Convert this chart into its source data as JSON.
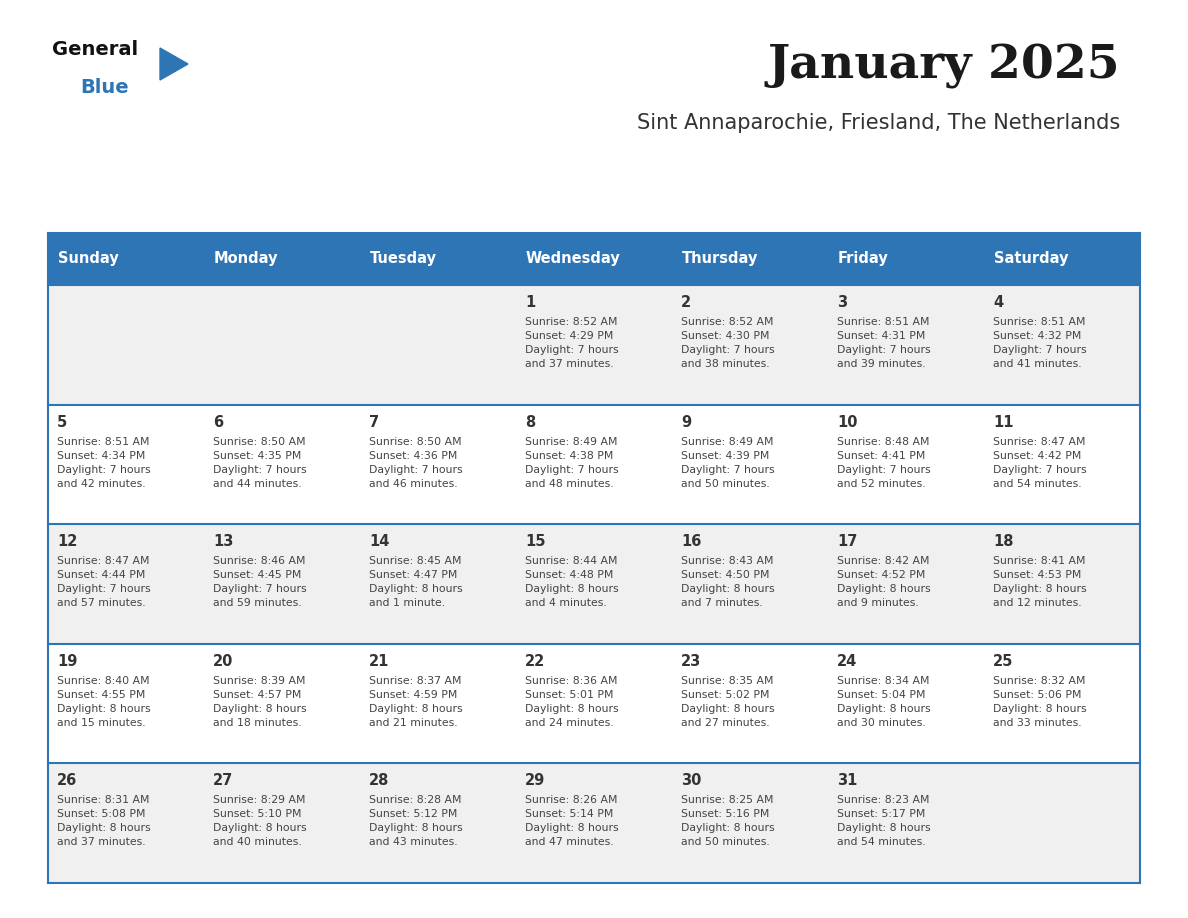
{
  "title": "January 2025",
  "subtitle": "Sint Annaparochie, Friesland, The Netherlands",
  "days_of_week": [
    "Sunday",
    "Monday",
    "Tuesday",
    "Wednesday",
    "Thursday",
    "Friday",
    "Saturday"
  ],
  "header_bg": "#2E75B6",
  "header_text_color": "#FFFFFF",
  "cell_bg_odd": "#F0F0F0",
  "cell_bg_even": "#FFFFFF",
  "separator_color": "#2E75B6",
  "day_number_color": "#333333",
  "cell_text_color": "#444444",
  "calendar_data": [
    [
      {
        "day": "",
        "info": ""
      },
      {
        "day": "",
        "info": ""
      },
      {
        "day": "",
        "info": ""
      },
      {
        "day": "1",
        "info": "Sunrise: 8:52 AM\nSunset: 4:29 PM\nDaylight: 7 hours\nand 37 minutes."
      },
      {
        "day": "2",
        "info": "Sunrise: 8:52 AM\nSunset: 4:30 PM\nDaylight: 7 hours\nand 38 minutes."
      },
      {
        "day": "3",
        "info": "Sunrise: 8:51 AM\nSunset: 4:31 PM\nDaylight: 7 hours\nand 39 minutes."
      },
      {
        "day": "4",
        "info": "Sunrise: 8:51 AM\nSunset: 4:32 PM\nDaylight: 7 hours\nand 41 minutes."
      }
    ],
    [
      {
        "day": "5",
        "info": "Sunrise: 8:51 AM\nSunset: 4:34 PM\nDaylight: 7 hours\nand 42 minutes."
      },
      {
        "day": "6",
        "info": "Sunrise: 8:50 AM\nSunset: 4:35 PM\nDaylight: 7 hours\nand 44 minutes."
      },
      {
        "day": "7",
        "info": "Sunrise: 8:50 AM\nSunset: 4:36 PM\nDaylight: 7 hours\nand 46 minutes."
      },
      {
        "day": "8",
        "info": "Sunrise: 8:49 AM\nSunset: 4:38 PM\nDaylight: 7 hours\nand 48 minutes."
      },
      {
        "day": "9",
        "info": "Sunrise: 8:49 AM\nSunset: 4:39 PM\nDaylight: 7 hours\nand 50 minutes."
      },
      {
        "day": "10",
        "info": "Sunrise: 8:48 AM\nSunset: 4:41 PM\nDaylight: 7 hours\nand 52 minutes."
      },
      {
        "day": "11",
        "info": "Sunrise: 8:47 AM\nSunset: 4:42 PM\nDaylight: 7 hours\nand 54 minutes."
      }
    ],
    [
      {
        "day": "12",
        "info": "Sunrise: 8:47 AM\nSunset: 4:44 PM\nDaylight: 7 hours\nand 57 minutes."
      },
      {
        "day": "13",
        "info": "Sunrise: 8:46 AM\nSunset: 4:45 PM\nDaylight: 7 hours\nand 59 minutes."
      },
      {
        "day": "14",
        "info": "Sunrise: 8:45 AM\nSunset: 4:47 PM\nDaylight: 8 hours\nand 1 minute."
      },
      {
        "day": "15",
        "info": "Sunrise: 8:44 AM\nSunset: 4:48 PM\nDaylight: 8 hours\nand 4 minutes."
      },
      {
        "day": "16",
        "info": "Sunrise: 8:43 AM\nSunset: 4:50 PM\nDaylight: 8 hours\nand 7 minutes."
      },
      {
        "day": "17",
        "info": "Sunrise: 8:42 AM\nSunset: 4:52 PM\nDaylight: 8 hours\nand 9 minutes."
      },
      {
        "day": "18",
        "info": "Sunrise: 8:41 AM\nSunset: 4:53 PM\nDaylight: 8 hours\nand 12 minutes."
      }
    ],
    [
      {
        "day": "19",
        "info": "Sunrise: 8:40 AM\nSunset: 4:55 PM\nDaylight: 8 hours\nand 15 minutes."
      },
      {
        "day": "20",
        "info": "Sunrise: 8:39 AM\nSunset: 4:57 PM\nDaylight: 8 hours\nand 18 minutes."
      },
      {
        "day": "21",
        "info": "Sunrise: 8:37 AM\nSunset: 4:59 PM\nDaylight: 8 hours\nand 21 minutes."
      },
      {
        "day": "22",
        "info": "Sunrise: 8:36 AM\nSunset: 5:01 PM\nDaylight: 8 hours\nand 24 minutes."
      },
      {
        "day": "23",
        "info": "Sunrise: 8:35 AM\nSunset: 5:02 PM\nDaylight: 8 hours\nand 27 minutes."
      },
      {
        "day": "24",
        "info": "Sunrise: 8:34 AM\nSunset: 5:04 PM\nDaylight: 8 hours\nand 30 minutes."
      },
      {
        "day": "25",
        "info": "Sunrise: 8:32 AM\nSunset: 5:06 PM\nDaylight: 8 hours\nand 33 minutes."
      }
    ],
    [
      {
        "day": "26",
        "info": "Sunrise: 8:31 AM\nSunset: 5:08 PM\nDaylight: 8 hours\nand 37 minutes."
      },
      {
        "day": "27",
        "info": "Sunrise: 8:29 AM\nSunset: 5:10 PM\nDaylight: 8 hours\nand 40 minutes."
      },
      {
        "day": "28",
        "info": "Sunrise: 8:28 AM\nSunset: 5:12 PM\nDaylight: 8 hours\nand 43 minutes."
      },
      {
        "day": "29",
        "info": "Sunrise: 8:26 AM\nSunset: 5:14 PM\nDaylight: 8 hours\nand 47 minutes."
      },
      {
        "day": "30",
        "info": "Sunrise: 8:25 AM\nSunset: 5:16 PM\nDaylight: 8 hours\nand 50 minutes."
      },
      {
        "day": "31",
        "info": "Sunrise: 8:23 AM\nSunset: 5:17 PM\nDaylight: 8 hours\nand 54 minutes."
      },
      {
        "day": "",
        "info": ""
      }
    ]
  ]
}
